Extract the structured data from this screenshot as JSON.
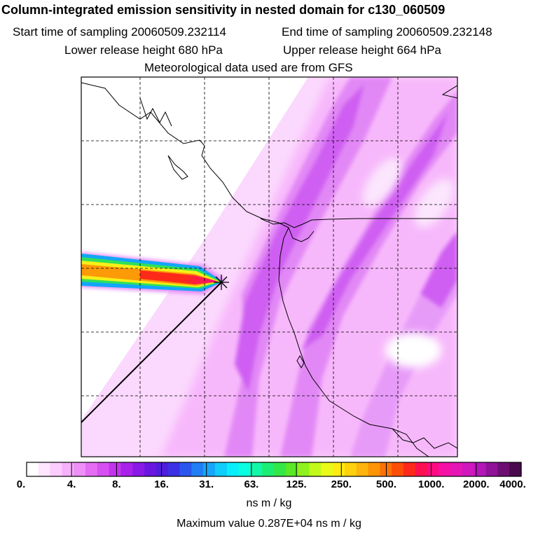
{
  "header": {
    "title": "Column-integrated emission sensitivity in nested domain for c130_060509",
    "start_label": "Start time of sampling 20060509.232114",
    "end_label": "End time of sampling 20060509.232148",
    "lower_label": "Lower release height  680 hPa",
    "upper_label": "Upper release height  664 hPa",
    "met_label": "Meteorological data used are from GFS"
  },
  "colorbar": {
    "tick_labels": [
      "0.",
      "4.",
      "8.",
      "16.",
      "31.",
      "63.",
      "125.",
      "250.",
      "500.",
      "1000.",
      "2000.",
      "4000."
    ],
    "units": "ns m / kg",
    "max_value": "Maximum value  0.287E+04 ns m / kg",
    "colors": [
      "#ffffff",
      "#fde6fe",
      "#fbccfd",
      "#f7b0fb",
      "#ef8ff8",
      "#e46cf3",
      "#d64ff0",
      "#c233ee",
      "#a822ea",
      "#8a18e6",
      "#6a16e0",
      "#4f1cdc",
      "#3b30e4",
      "#2b56ee",
      "#1f7ef5",
      "#17a6fa",
      "#10cdfc",
      "#0aeefc",
      "#0afde0",
      "#12f7a8",
      "#1cee74",
      "#32e846",
      "#5ae826",
      "#8df21e",
      "#c2f81a",
      "#eafa18",
      "#fdeb12",
      "#fdd10e",
      "#fdb40c",
      "#fd9408",
      "#fd7206",
      "#fd4e08",
      "#fd2a1a",
      "#fd1050",
      "#fc0a82",
      "#f510a6",
      "#e616b6",
      "#d018be",
      "#b416b8",
      "#901298",
      "#6c0e72",
      "#4a0a4e"
    ]
  },
  "map": {
    "marker_icon": "release-point-star-icon"
  }
}
